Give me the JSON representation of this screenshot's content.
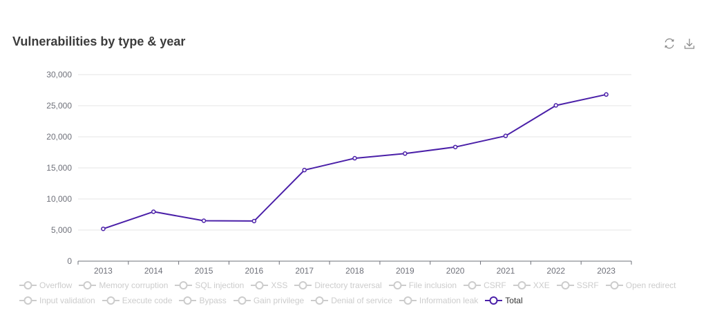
{
  "title": "Vulnerabilities by type & year",
  "toolbox": {
    "restore_icon": "refresh-icon",
    "download_icon": "download-icon"
  },
  "colors": {
    "series": "#4a1fa8",
    "grid": "#e6e6e6",
    "axis": "#6e7079",
    "inactive": "#cccccc"
  },
  "chart_data": {
    "type": "line",
    "title": "Vulnerabilities by type & year",
    "categories": [
      "2013",
      "2014",
      "2015",
      "2016",
      "2017",
      "2018",
      "2019",
      "2020",
      "2021",
      "2022",
      "2023"
    ],
    "series": [
      {
        "name": "Total",
        "values": [
          5200,
          7950,
          6500,
          6450,
          14650,
          16550,
          17300,
          18350,
          20150,
          25050,
          26800
        ]
      }
    ],
    "y_ticks": [
      "0",
      "5,000",
      "10,000",
      "15,000",
      "20,000",
      "25,000",
      "30,000"
    ],
    "ylim": [
      0,
      30000
    ],
    "xlabel": "",
    "ylabel": "",
    "legend_position": "bottom"
  },
  "legend": {
    "rows": [
      [
        {
          "label": "Overflow",
          "active": false
        },
        {
          "label": "Memory corruption",
          "active": false
        },
        {
          "label": "SQL injection",
          "active": false
        },
        {
          "label": "XSS",
          "active": false
        },
        {
          "label": "Directory traversal",
          "active": false
        },
        {
          "label": "File inclusion",
          "active": false
        },
        {
          "label": "CSRF",
          "active": false
        },
        {
          "label": "XXE",
          "active": false
        },
        {
          "label": "SSRF",
          "active": false
        },
        {
          "label": "Open redirect",
          "active": false
        }
      ],
      [
        {
          "label": "Input validation",
          "active": false
        },
        {
          "label": "Execute code",
          "active": false
        },
        {
          "label": "Bypass",
          "active": false
        },
        {
          "label": "Gain privilege",
          "active": false
        },
        {
          "label": "Denial of service",
          "active": false
        },
        {
          "label": "Information leak",
          "active": false
        },
        {
          "label": "Total",
          "active": true
        }
      ]
    ]
  }
}
